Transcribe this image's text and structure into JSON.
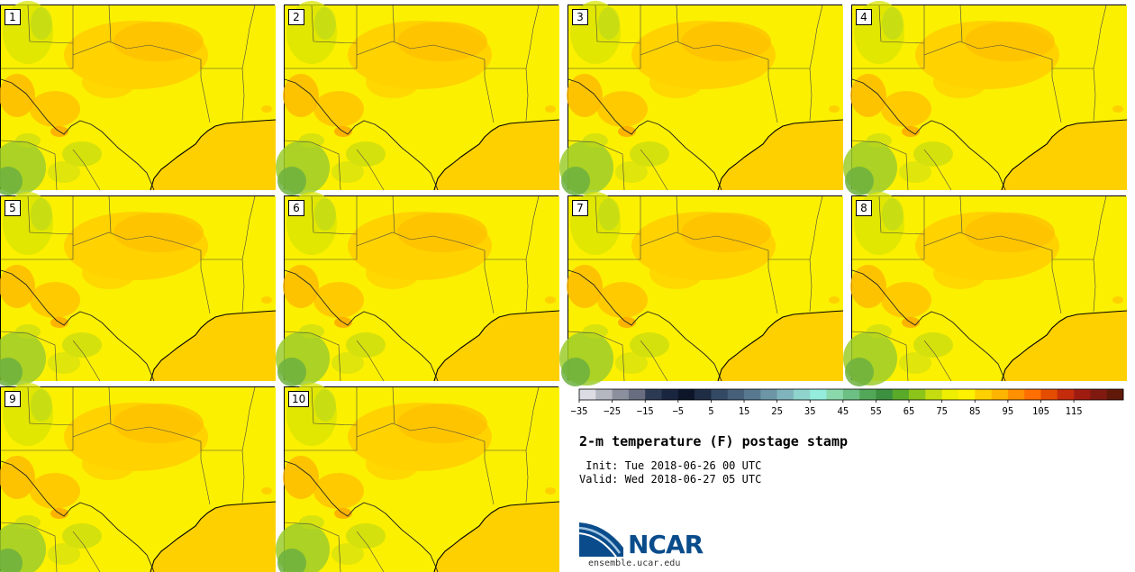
{
  "panels": [
    "1",
    "2",
    "3",
    "4",
    "5",
    "6",
    "7",
    "8",
    "9",
    "10"
  ],
  "title": "2-m temperature (F) postage stamp",
  "init_line": " Init: Tue 2018-06-26 00 UTC",
  "valid_line": "Valid: Wed 2018-06-27 05 UTC",
  "colorbar": {
    "tick_labels": [
      "−35",
      "−25",
      "−15",
      "−5",
      "5",
      "15",
      "25",
      "35",
      "45",
      "55",
      "65",
      "75",
      "85",
      "95",
      "105",
      "115"
    ],
    "colors": [
      "#dcdce4",
      "#b4b6c0",
      "#8c909e",
      "#686e80",
      "#2c3a54",
      "#1a2640",
      "#0c1628",
      "#1e2c44",
      "#344a64",
      "#46607a",
      "#587890",
      "#6c96a6",
      "#80b4bc",
      "#8ed4cc",
      "#94ecdc",
      "#8ad8ac",
      "#6cc084",
      "#52a858",
      "#3c9040",
      "#5aaa2a",
      "#8cc41a",
      "#c4dc10",
      "#eeee00",
      "#fff200",
      "#ffd000",
      "#ffb400",
      "#ff9000",
      "#ff6e00",
      "#e44c00",
      "#c42c0c",
      "#a01c10",
      "#801a10",
      "#601808"
    ]
  },
  "logo": {
    "name": "NCAR",
    "url": "ensemble.ucar.edu"
  }
}
